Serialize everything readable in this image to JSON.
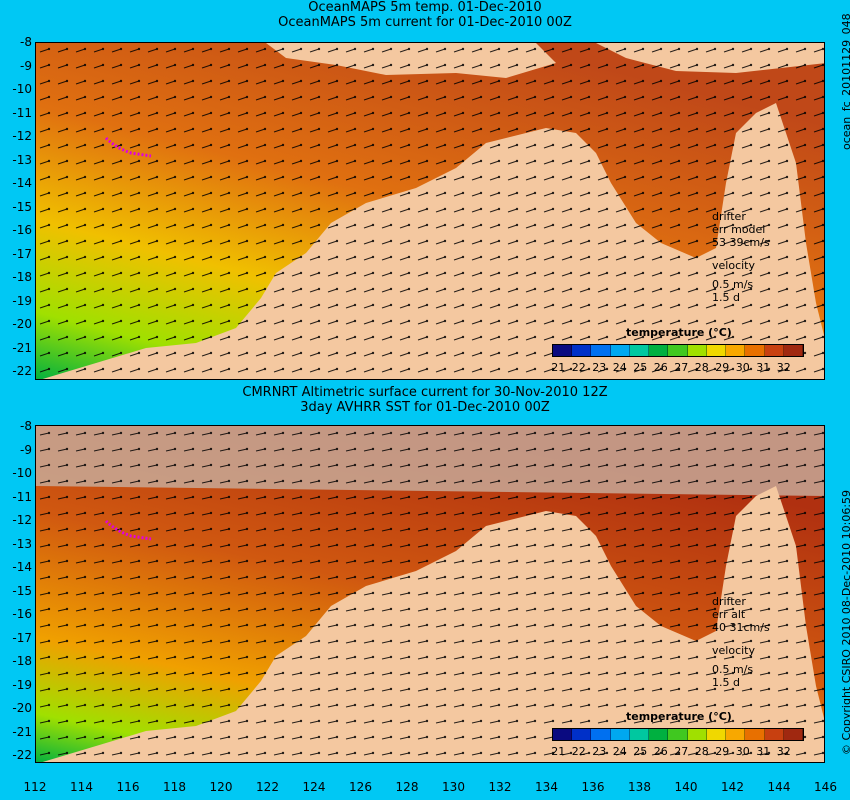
{
  "top": {
    "title1": "OceanMAPS 5m temp. 01-Dec-2010",
    "title2": "OceanMAPS 5m current for 01-Dec-2010 00Z",
    "side_label": "ocean_fc_20101129_048",
    "legend": {
      "drifter": "drifter",
      "err": "err model",
      "err_value": "53 39cm/s",
      "velocity": "velocity",
      "scale": "0.5 m/s",
      "days": "1.5 d"
    }
  },
  "bottom": {
    "title1": "CMRNRT Altimetric surface current for 30-Nov-2010 12Z",
    "title2": "3day AVHRR SST for 01-Dec-2010 00Z",
    "side_label": "© Copyright CSIRO 2010   08-Dec-2010 10:06:59",
    "legend": {
      "drifter": "drifter",
      "err": "err alt",
      "err_value": "40 31cm/s",
      "velocity": "velocity",
      "scale": "0.5 m/s",
      "days": "1.5 d"
    }
  },
  "colorbar": {
    "title": "temperature (°C)",
    "labels": [
      "21",
      "22",
      "23",
      "24",
      "25",
      "26",
      "27",
      "28",
      "29",
      "30",
      "31",
      "32"
    ],
    "colors": [
      "#0a0a80",
      "#0030c8",
      "#0070f0",
      "#00a8f0",
      "#00c8a0",
      "#00b040",
      "#40c820",
      "#a0e000",
      "#f0d800",
      "#f8a800",
      "#e87000",
      "#c84010",
      "#a02810"
    ]
  },
  "axes": {
    "lat_ticks": [
      "-8",
      "-9",
      "-10",
      "-11",
      "-12",
      "-13",
      "-14",
      "-15",
      "-16",
      "-17",
      "-18",
      "-19",
      "-20",
      "-21",
      "-22"
    ],
    "lon_ticks": [
      "112",
      "114",
      "116",
      "118",
      "120",
      "122",
      "124",
      "126",
      "128",
      "130",
      "132",
      "134",
      "136",
      "138",
      "140",
      "142",
      "144",
      "146"
    ]
  },
  "colors": {
    "background": "#00c8f4",
    "land": "#f4c8a0",
    "drifter": "#e000e0",
    "bathymetry": "#40e0d0"
  }
}
